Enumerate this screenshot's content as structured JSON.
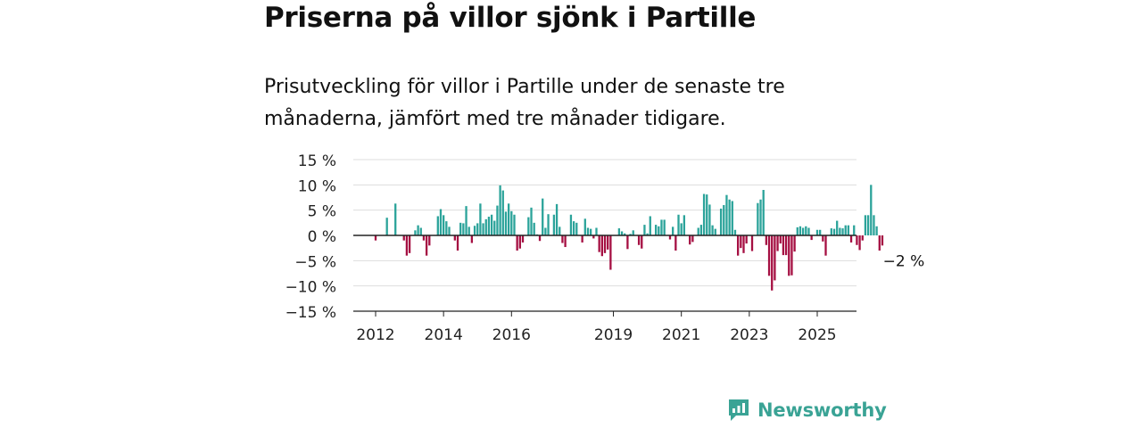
{
  "title": "Priserna på villor sjönk i Partille",
  "subtitle": "Prisutveckling för villor i Partille under de senaste tre månaderna, jämfört med tre månader tidigare.",
  "brand": {
    "name": "Newsworthy",
    "icon": "newsworthy-logo-icon",
    "color": "#3aa395"
  },
  "colors": {
    "positive": "#2ba39a",
    "negative": "#a50f42",
    "grid": "#dddddd",
    "zero_line": "#222222"
  },
  "chart_data": {
    "type": "bar",
    "x_start": "2012-01",
    "x_end": "2025-06",
    "xticks": [
      {
        "label": "2012",
        "year": 2012
      },
      {
        "label": "2014",
        "year": 2014
      },
      {
        "label": "2016",
        "year": 2016
      },
      {
        "label": "2019",
        "year": 2019
      },
      {
        "label": "2021",
        "year": 2021
      },
      {
        "label": "2023",
        "year": 2023
      },
      {
        "label": "2025",
        "year": 2025
      }
    ],
    "ylim": [
      -15,
      15
    ],
    "yticks": [
      {
        "value": 15,
        "label": "15 %"
      },
      {
        "value": 10,
        "label": "10 %"
      },
      {
        "value": 5,
        "label": "5 %"
      },
      {
        "value": 0,
        "label": "0 %"
      },
      {
        "value": -5,
        "label": "−5 %"
      },
      {
        "value": -10,
        "label": "−10 %"
      },
      {
        "value": -15,
        "label": "−15 %"
      }
    ],
    "grid": true,
    "unit": "%",
    "last_label": "−2 %",
    "values": [
      -1,
      0,
      0,
      0,
      3.5,
      0,
      0,
      6.3,
      0,
      0,
      -1,
      -4,
      -3.5,
      0,
      1,
      2,
      1.5,
      -1,
      -4,
      -2,
      0,
      0,
      3.8,
      5.2,
      4,
      2.8,
      1.7,
      0,
      -1,
      -3,
      2.5,
      2.4,
      5.8,
      1.7,
      -1.5,
      1.9,
      2.4,
      6.3,
      2.4,
      3.2,
      3.7,
      4.1,
      2.9,
      5.9,
      9.9,
      8.9,
      4.7,
      6.3,
      4.8,
      4.1,
      -3,
      -2.6,
      -1.4,
      0,
      3.6,
      5.5,
      2.5,
      0.2,
      -1.1,
      7.3,
      1.5,
      4.2,
      0,
      4.1,
      6.2,
      1.7,
      -1.5,
      -2.3,
      0,
      4.1,
      2.8,
      2.5,
      0,
      -1.4,
      3.3,
      1.5,
      1.3,
      -0.6,
      1.5,
      -3.3,
      -4.1,
      -3.5,
      -2.8,
      -6.8,
      0,
      0,
      1.4,
      0.8,
      0.4,
      -2.7,
      0.3,
      1,
      0,
      -1.9,
      -2.6,
      2.1,
      0.4,
      3.8,
      0,
      2.1,
      1.8,
      3.1,
      3.1,
      0,
      -0.8,
      1.7,
      -3,
      4.1,
      2.4,
      4,
      0,
      -1.8,
      -1.3,
      0,
      1.5,
      2.1,
      8.2,
      8.1,
      6.1,
      2,
      1.3,
      0,
      5.3,
      6,
      8,
      7.1,
      6.8,
      1.1,
      -4,
      -2.5,
      -3.5,
      -1.6,
      0,
      -3.1,
      0,
      6.4,
      7.1,
      9,
      -1.9,
      -8,
      -10.9,
      -8.9,
      -3.1,
      -1.6,
      -3.9,
      -3.9,
      -8,
      -7.9,
      -3.2,
      1.6,
      1.8,
      1.5,
      1.8,
      1.5,
      -0.9,
      0,
      1.1,
      1.1,
      -1.2,
      -4,
      0,
      1.4,
      1.3,
      2.9,
      1.5,
      1.4,
      2,
      2,
      -1.4,
      2,
      -1.9,
      -2.9,
      -1,
      4,
      4,
      10,
      4,
      1.8,
      -3,
      -2
    ]
  }
}
